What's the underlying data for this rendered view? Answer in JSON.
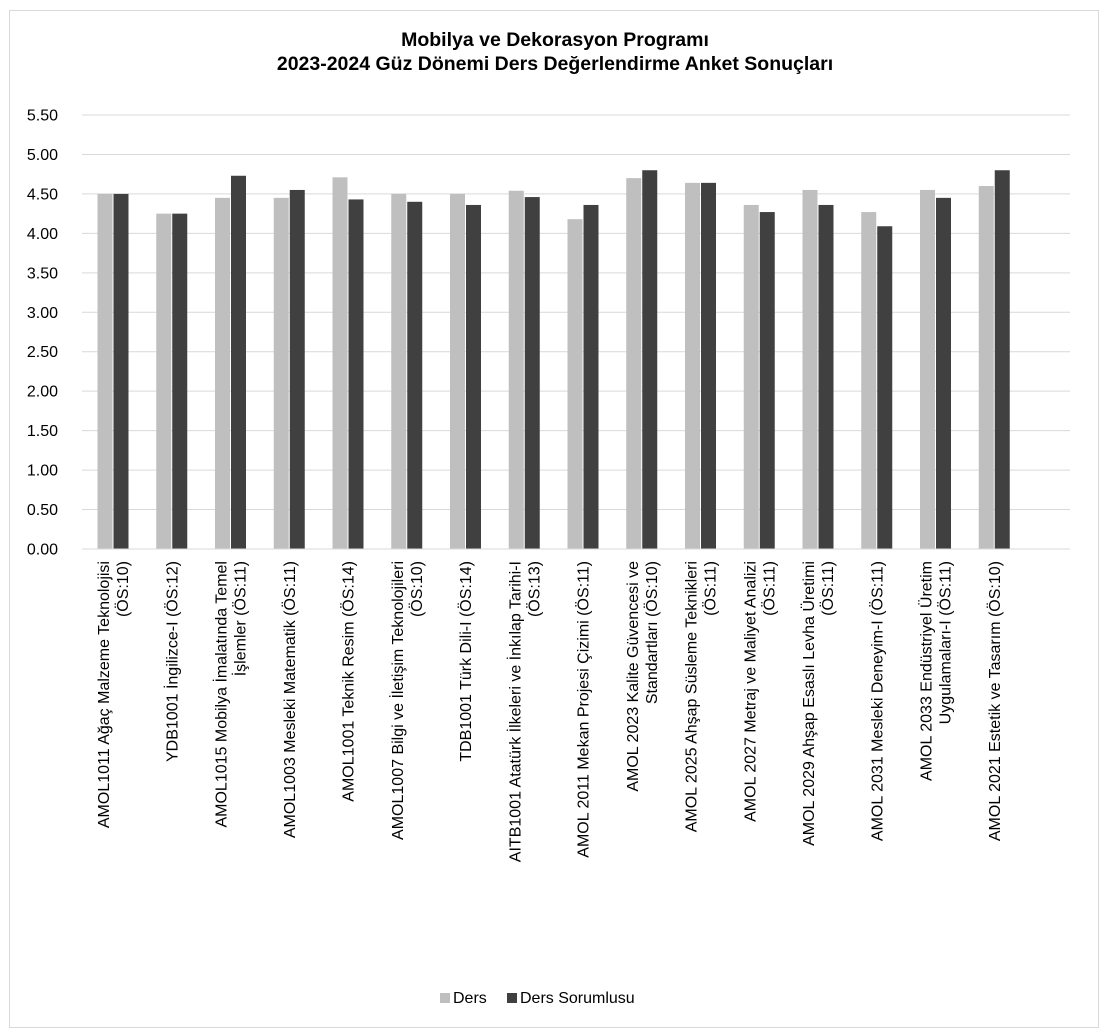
{
  "chart_data": {
    "type": "bar",
    "title_lines": [
      "Mobilya ve Dekorasyon Programı",
      "2023-2024 Güz Dönemi Ders Değerlendirme Anket Sonuçları"
    ],
    "categories": [
      [
        "AMOL1011 Ağaç Malzeme Teknolojisi",
        "(ÖS:10)"
      ],
      [
        "YDB1001 İngilizce-I (ÖS:12)"
      ],
      [
        "AMOL1015 Mobilya İmalatında Temel",
        "İşlemler (ÖS:11)"
      ],
      [
        "AMOL1003 Mesleki Matematik (ÖS:11)"
      ],
      [
        "AMOL1001 Teknik Resim (ÖS:14)"
      ],
      [
        "AMOL1007 Bilgi ve İletişim Teknolojileri",
        "(ÖS:10)"
      ],
      [
        "TDB1001 Türk Dili-I (ÖS:14)"
      ],
      [
        "AITB1001 Atatürk İlkeleri ve İnkılap Tarihi-I",
        "(ÖS:13)"
      ],
      [
        "AMOL 2011 Mekan Projesi Çizimi (ÖS:11)"
      ],
      [
        "AMOL 2023 Kalite Güvencesi ve",
        "Standartları (ÖS:10)"
      ],
      [
        "AMOL 2025 Ahşap Süsleme Teknikleri",
        "(ÖS:11)"
      ],
      [
        "AMOL 2027 Metraj ve Maliyet Analizi",
        "(ÖS:11)"
      ],
      [
        "AMOL 2029 Ahşap Esaslı Levha Üretimi",
        "(ÖS:11)"
      ],
      [
        "AMOL 2031 Mesleki Deneyim-I (ÖS:11)"
      ],
      [
        "AMOL 2033 Endüstriyel Üretim",
        "Uygulamaları-I (ÖS:11)"
      ],
      [
        "AMOL 2021 Estetik ve Tasarım (ÖS:10)"
      ]
    ],
    "series": [
      {
        "name": "Ders",
        "color": "#bfbfbf",
        "values": [
          4.5,
          4.25,
          4.45,
          4.45,
          4.71,
          4.5,
          4.5,
          4.54,
          4.18,
          4.7,
          4.64,
          4.36,
          4.55,
          4.27,
          4.55,
          4.6
        ]
      },
      {
        "name": "Ders Sorumlusu",
        "color": "#404040",
        "values": [
          4.5,
          4.25,
          4.73,
          4.55,
          4.43,
          4.4,
          4.36,
          4.46,
          4.36,
          4.8,
          4.64,
          4.27,
          4.36,
          4.09,
          4.45,
          4.8
        ]
      }
    ],
    "y_ticks": [
      "0.00",
      "0.50",
      "1.00",
      "1.50",
      "2.00",
      "2.50",
      "3.00",
      "3.50",
      "4.00",
      "4.50",
      "5.00",
      "5.50"
    ],
    "ylim": [
      0,
      5.5
    ],
    "grid": true,
    "legend_position": "bottom"
  }
}
